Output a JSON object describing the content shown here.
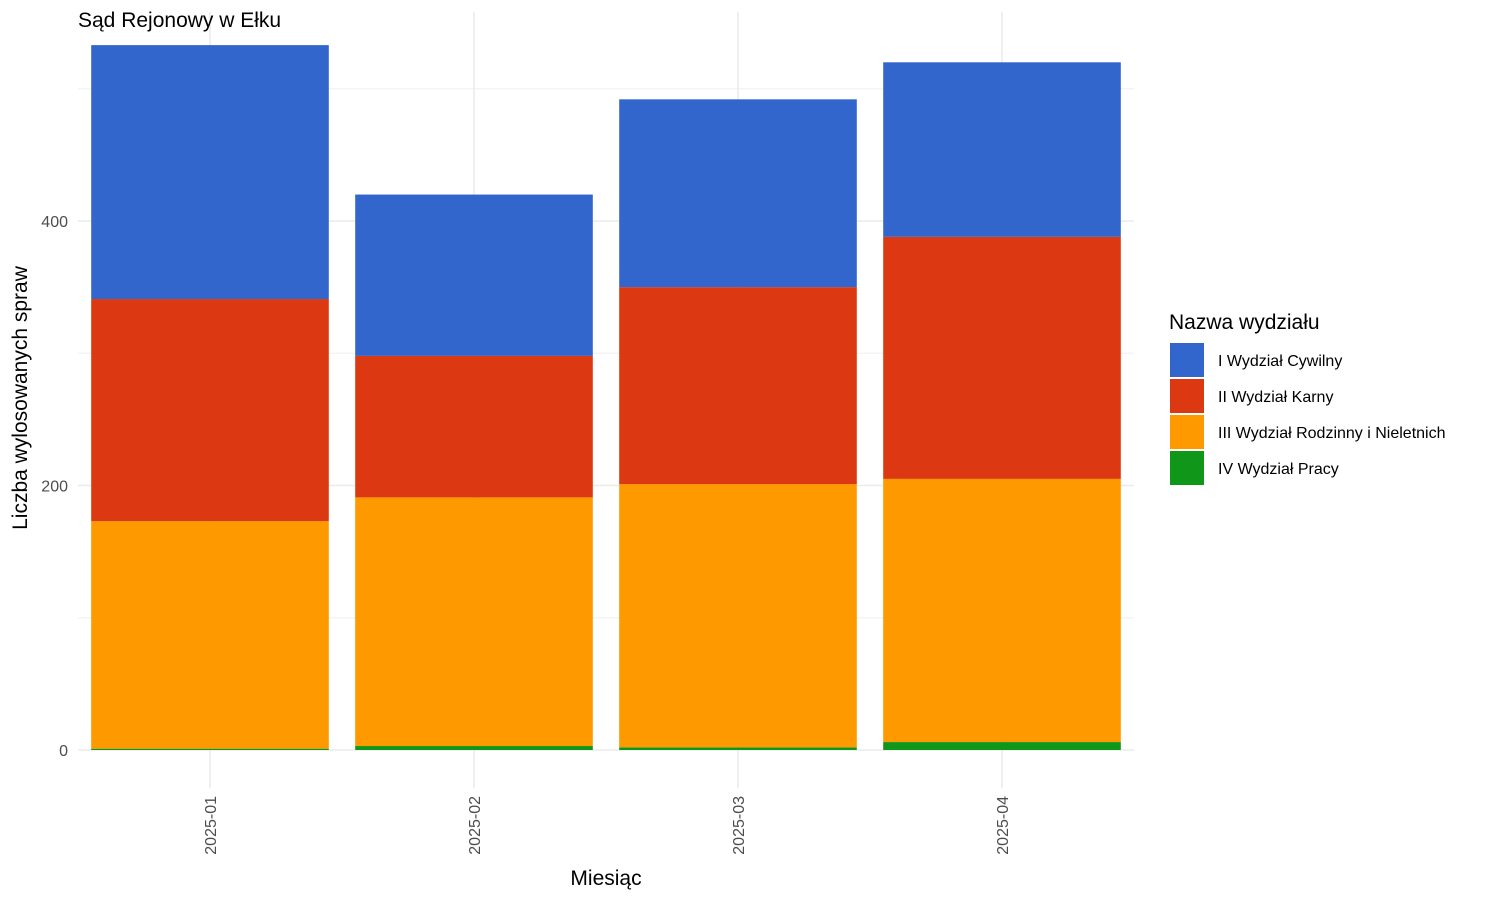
{
  "chart_data": {
    "type": "bar",
    "stacked": true,
    "title": "Sąd Rejonowy w Ełku",
    "xlabel": "Miesiąc",
    "ylabel": "Liczba wylosowanych spraw",
    "categories": [
      "2025-01",
      "2025-02",
      "2025-03",
      "2025-04"
    ],
    "y_ticks": [
      0,
      200,
      400
    ],
    "ylim": [
      -20,
      560
    ],
    "grid": true,
    "legend": {
      "title": "Nazwa wydziału",
      "position": "right"
    },
    "series": [
      {
        "name": "IV Wydział Pracy",
        "color": "#109618",
        "values": [
          1,
          3,
          2,
          6
        ]
      },
      {
        "name": "III Wydział Rodzinny i Nieletnich",
        "color": "#ff9900",
        "values": [
          172,
          188,
          199,
          199
        ]
      },
      {
        "name": "II Wydział Karny",
        "color": "#dc3912",
        "values": [
          168,
          107,
          149,
          183
        ]
      },
      {
        "name": "I Wydział Cywilny",
        "color": "#3366cc",
        "values": [
          192,
          122,
          142,
          132
        ]
      }
    ],
    "legend_order": [
      "I Wydział Cywilny",
      "II Wydział Karny",
      "III Wydział Rodzinny i Nieletnich",
      "IV Wydział Pracy"
    ]
  }
}
